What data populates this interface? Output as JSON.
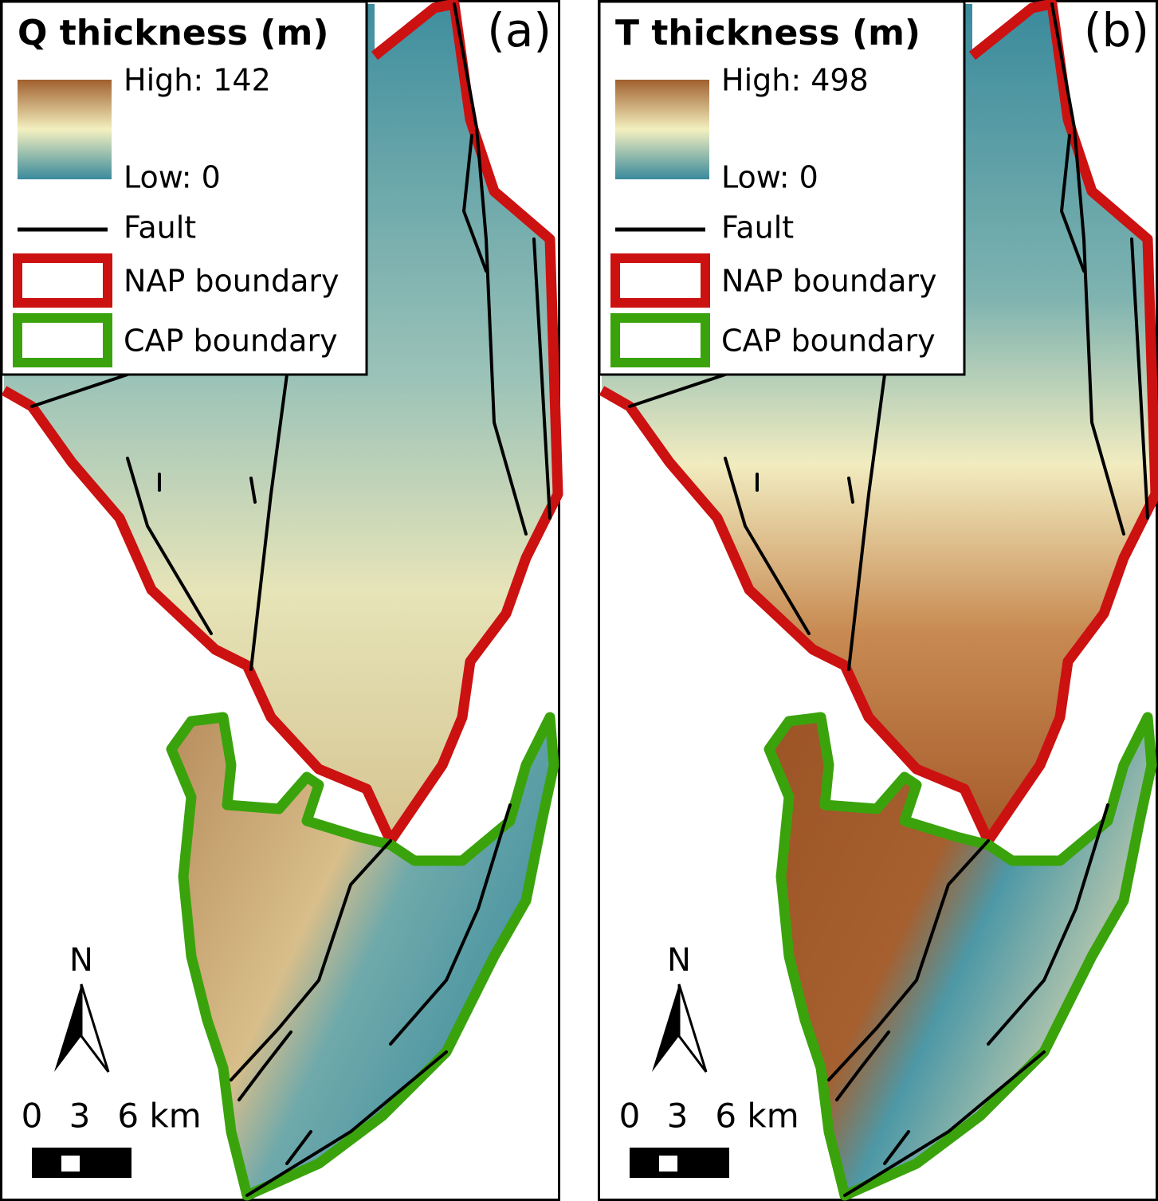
{
  "panels": [
    {
      "label": "(a)",
      "legend": {
        "title": "Q thickness (m)",
        "high": "High: 142",
        "low": "Low: 0",
        "fault": "Fault",
        "nap": "NAP boundary",
        "cap": "CAP boundary"
      },
      "north": "N",
      "scale": [
        "0",
        "3",
        "6 km"
      ]
    },
    {
      "label": "(b)",
      "legend": {
        "title": "T thickness (m)",
        "high": "High: 498",
        "low": "Low: 0",
        "fault": "Fault",
        "nap": "NAP boundary",
        "cap": "CAP boundary"
      },
      "north": "N",
      "scale": [
        "0",
        "3",
        "6 km"
      ]
    }
  ]
}
